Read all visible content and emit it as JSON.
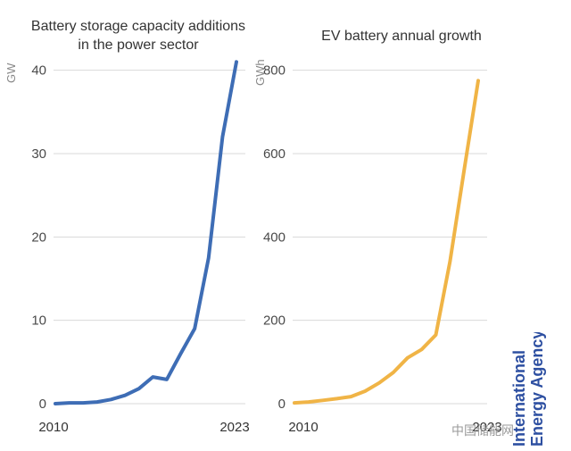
{
  "chart_data": [
    {
      "type": "line",
      "title": "Battery storage capacity additions\nin the power sector",
      "title_lines": [
        "Battery storage capacity additions",
        "in the power sector"
      ],
      "ylabel": "GW",
      "xlabel": "",
      "ylim": [
        0,
        42
      ],
      "yticks": [
        0,
        10,
        20,
        30,
        40
      ],
      "x_tick_labels": [
        "2010",
        "2023"
      ],
      "grid": true,
      "color": "#3e6db5",
      "x": [
        2010,
        2011,
        2012,
        2013,
        2014,
        2015,
        2016,
        2017,
        2018,
        2019,
        2020,
        2021,
        2022,
        2023
      ],
      "series": [
        {
          "values": [
            0.0,
            0.1,
            0.1,
            0.2,
            0.5,
            1.0,
            1.8,
            3.2,
            2.9,
            6.0,
            9.0,
            17.5,
            32.0,
            41.0
          ]
        }
      ]
    },
    {
      "type": "line",
      "title": "EV battery annual growth",
      "title_lines": [
        "EV battery annual growth"
      ],
      "ylabel": "GWh",
      "xlabel": "",
      "ylim": [
        0,
        840
      ],
      "yticks": [
        0,
        200,
        400,
        600,
        800
      ],
      "x_tick_labels": [
        "2010",
        "2023"
      ],
      "grid": true,
      "color": "#f0b446",
      "x": [
        2010,
        2011,
        2012,
        2013,
        2014,
        2015,
        2016,
        2017,
        2018,
        2019,
        2020,
        2021,
        2022,
        2023
      ],
      "series": [
        {
          "values": [
            2,
            4,
            8,
            12,
            17,
            30,
            50,
            75,
            110,
            130,
            165,
            340,
            560,
            775
          ]
        }
      ]
    }
  ],
  "branding": {
    "agency_lines": [
      "International",
      "Energy Agency"
    ],
    "watermark": "中国储能网"
  }
}
